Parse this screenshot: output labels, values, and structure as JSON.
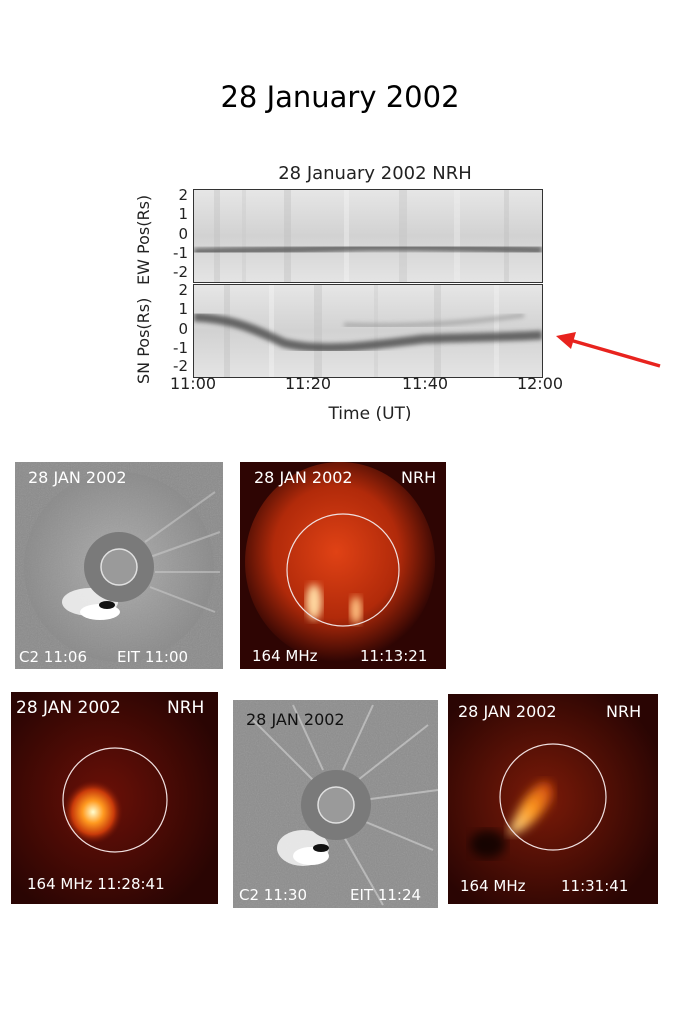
{
  "figure": {
    "title": "28 January 2002",
    "spectrogram": {
      "title": "28 January 2002  NRH",
      "panels": [
        {
          "ylabel": "EW Pos(Rs)",
          "yticks": [
            "2",
            "1",
            "0",
            "-1",
            "-2"
          ]
        },
        {
          "ylabel": "SN Pos(Rs)",
          "yticks": [
            "2",
            "1",
            "0",
            "-1",
            "-2"
          ]
        }
      ],
      "xticks": [
        "11:00",
        "11:20",
        "11:40",
        "12:00"
      ],
      "xlabel": "Time (UT)"
    },
    "images": [
      {
        "date": "28 JAN 2002",
        "left_label": "C2 11:06",
        "right_label": "EIT 11:00"
      },
      {
        "date": "28 JAN 2002",
        "instrument": "NRH",
        "left_label": "164 MHz",
        "right_label": "11:13:21"
      },
      {
        "date": "28 JAN 2002",
        "instrument": "NRH",
        "left_label": "164 MHz 11:28:41"
      },
      {
        "date": "28 JAN 2002",
        "left_label": "C2 11:30",
        "right_label": "EIT 11:24"
      },
      {
        "date": "28 JAN 2002",
        "instrument": "NRH",
        "left_label": "164 MHz",
        "right_label": "11:31:41"
      }
    ]
  },
  "colors": {
    "arrow": "#e8231e",
    "nrh_background": "#3a0704",
    "lasco_gray": "#8a8a8a"
  }
}
